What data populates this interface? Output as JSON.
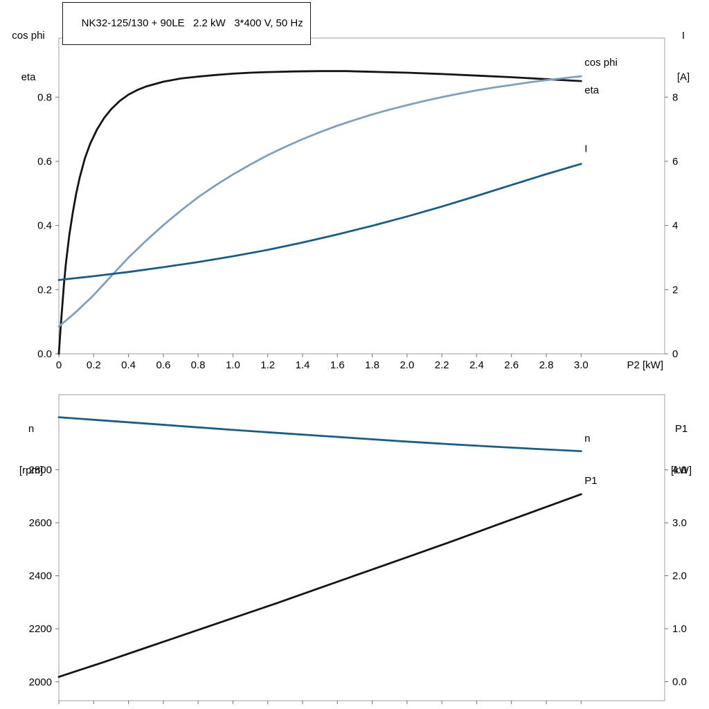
{
  "colors": {
    "black_curve": "#141414",
    "cos_phi_curve": "#7f9fbf",
    "blue_curve": "#1a5c84",
    "axis_box": "#9e9e9e",
    "tick": "#6e6e6e",
    "text": "#000000"
  },
  "chart_data": [
    {
      "type": "line",
      "title": "NK32-125/130 + 90LE   2.2 kW   3*400 V, 50 Hz",
      "grid": false,
      "x_axis": {
        "label": "P2 [kW]",
        "min": 0,
        "max": 3.48,
        "tick_values": [
          0,
          0.2,
          0.4,
          0.6,
          0.8,
          1.0,
          1.2,
          1.4,
          1.6,
          1.8,
          2.0,
          2.2,
          2.4,
          2.6,
          2.8,
          3.0
        ],
        "tick_labels": [
          "0",
          "0.2",
          "0.4",
          "0.6",
          "0.8",
          "1.0",
          "1.2",
          "1.4",
          "1.6",
          "1.8",
          "2.0",
          "2.2",
          "2.4",
          "2.6",
          "2.8",
          "3.0"
        ]
      },
      "y_left": {
        "title_lines": [
          "cos phi",
          "eta"
        ],
        "min": 0,
        "max": 0.984,
        "tick_values": [
          0,
          0.2,
          0.4,
          0.6,
          0.8
        ],
        "tick_labels": [
          "0.0",
          "0.2",
          "0.4",
          "0.6",
          "0.8"
        ]
      },
      "y_right": {
        "title_lines": [
          "I",
          "[A]"
        ],
        "min": 0,
        "max": 9.84,
        "tick_values": [
          0,
          2,
          4,
          6,
          8
        ],
        "tick_labels": [
          "0",
          "2",
          "4",
          "6",
          "8"
        ]
      },
      "series": [
        {
          "name": "eta",
          "label": "eta",
          "axis": "left",
          "color": "black_curve",
          "label_at": {
            "x": 3.02,
            "y": 0.822
          },
          "points": [
            [
              0,
              0
            ],
            [
              0.01,
              0.08
            ],
            [
              0.02,
              0.15
            ],
            [
              0.03,
              0.22
            ],
            [
              0.04,
              0.28
            ],
            [
              0.06,
              0.37
            ],
            [
              0.08,
              0.44
            ],
            [
              0.1,
              0.5
            ],
            [
              0.12,
              0.55
            ],
            [
              0.15,
              0.61
            ],
            [
              0.18,
              0.655
            ],
            [
              0.22,
              0.7
            ],
            [
              0.26,
              0.735
            ],
            [
              0.3,
              0.762
            ],
            [
              0.35,
              0.788
            ],
            [
              0.4,
              0.808
            ],
            [
              0.45,
              0.822
            ],
            [
              0.5,
              0.833
            ],
            [
              0.6,
              0.848
            ],
            [
              0.7,
              0.858
            ],
            [
              0.8,
              0.864
            ],
            [
              0.9,
              0.869
            ],
            [
              1.0,
              0.873
            ],
            [
              1.1,
              0.876
            ],
            [
              1.2,
              0.878
            ],
            [
              1.35,
              0.88
            ],
            [
              1.5,
              0.881
            ],
            [
              1.65,
              0.881
            ],
            [
              1.8,
              0.879
            ],
            [
              2.0,
              0.876
            ],
            [
              2.2,
              0.872
            ],
            [
              2.4,
              0.867
            ],
            [
              2.6,
              0.862
            ],
            [
              2.8,
              0.856
            ],
            [
              3.0,
              0.85
            ]
          ]
        },
        {
          "name": "cos-phi",
          "label": "cos phi",
          "axis": "left",
          "color": "cos_phi_curve",
          "label_at": {
            "x": 3.02,
            "y": 0.908
          },
          "points": [
            [
              0,
              0.085
            ],
            [
              0.1,
              0.131
            ],
            [
              0.2,
              0.183
            ],
            [
              0.3,
              0.242
            ],
            [
              0.4,
              0.3
            ],
            [
              0.5,
              0.352
            ],
            [
              0.6,
              0.401
            ],
            [
              0.7,
              0.446
            ],
            [
              0.8,
              0.488
            ],
            [
              0.9,
              0.525
            ],
            [
              1.0,
              0.559
            ],
            [
              1.1,
              0.59
            ],
            [
              1.2,
              0.619
            ],
            [
              1.3,
              0.645
            ],
            [
              1.4,
              0.669
            ],
            [
              1.5,
              0.691
            ],
            [
              1.6,
              0.711
            ],
            [
              1.7,
              0.729
            ],
            [
              1.8,
              0.746
            ],
            [
              1.9,
              0.761
            ],
            [
              2.0,
              0.775
            ],
            [
              2.1,
              0.788
            ],
            [
              2.2,
              0.8
            ],
            [
              2.3,
              0.811
            ],
            [
              2.4,
              0.821
            ],
            [
              2.5,
              0.83
            ],
            [
              2.6,
              0.838
            ],
            [
              2.7,
              0.846
            ],
            [
              2.8,
              0.853
            ],
            [
              2.9,
              0.859
            ],
            [
              3.0,
              0.865
            ]
          ]
        },
        {
          "name": "current",
          "label": "I",
          "axis": "right",
          "color": "blue_curve",
          "label_at": {
            "x": 3.02,
            "y": 6.4
          },
          "points": [
            [
              0,
              2.3
            ],
            [
              0.2,
              2.42
            ],
            [
              0.4,
              2.55
            ],
            [
              0.6,
              2.7
            ],
            [
              0.8,
              2.86
            ],
            [
              1.0,
              3.04
            ],
            [
              1.2,
              3.24
            ],
            [
              1.4,
              3.47
            ],
            [
              1.6,
              3.72
            ],
            [
              1.8,
              3.99
            ],
            [
              2.0,
              4.28
            ],
            [
              2.2,
              4.59
            ],
            [
              2.4,
              4.92
            ],
            [
              2.6,
              5.26
            ],
            [
              2.8,
              5.6
            ],
            [
              3.0,
              5.92
            ]
          ]
        }
      ]
    },
    {
      "type": "line",
      "title": "",
      "grid": false,
      "x_axis": {
        "label": "",
        "min": 0,
        "max": 3.48,
        "tick_values": [
          0,
          0.2,
          0.4,
          0.6,
          0.8,
          1.0,
          1.2,
          1.4,
          1.6,
          1.8,
          2.0,
          2.2,
          2.4,
          2.6,
          2.8,
          3.0
        ],
        "tick_labels": []
      },
      "y_left": {
        "title_lines": [
          "n",
          "[rpm]"
        ],
        "min": 1929,
        "max": 3083,
        "tick_values": [
          2000,
          2200,
          2400,
          2600,
          2800
        ],
        "tick_labels": [
          "2000",
          "2200",
          "2400",
          "2600",
          "2800"
        ]
      },
      "y_right": {
        "title_lines": [
          "P1",
          "[kW]"
        ],
        "min": -0.36,
        "max": 5.42,
        "tick_values": [
          0,
          1,
          2,
          3,
          4
        ],
        "tick_labels": [
          "0.0",
          "1.0",
          "2.0",
          "3.0",
          "4.0"
        ]
      },
      "series": [
        {
          "name": "speed",
          "label": "n",
          "axis": "left",
          "color": "blue_curve",
          "label_at": {
            "x": 3.02,
            "y": 2918
          },
          "points": [
            [
              0,
              2998
            ],
            [
              0.25,
              2986
            ],
            [
              0.5,
              2974
            ],
            [
              0.75,
              2962
            ],
            [
              1.0,
              2950
            ],
            [
              1.25,
              2939
            ],
            [
              1.5,
              2928
            ],
            [
              1.75,
              2917
            ],
            [
              2.0,
              2906
            ],
            [
              2.25,
              2896
            ],
            [
              2.5,
              2887
            ],
            [
              2.75,
              2878
            ],
            [
              3.0,
              2870
            ]
          ]
        },
        {
          "name": "p1",
          "label": "P1",
          "axis": "right",
          "color": "black_curve",
          "label_at": {
            "x": 3.02,
            "y": 3.8
          },
          "points": [
            [
              0,
              0.09
            ],
            [
              0.25,
              0.36
            ],
            [
              0.5,
              0.64
            ],
            [
              0.75,
              0.92
            ],
            [
              1.0,
              1.2
            ],
            [
              1.25,
              1.48
            ],
            [
              1.5,
              1.77
            ],
            [
              1.75,
              2.06
            ],
            [
              2.0,
              2.35
            ],
            [
              2.25,
              2.64
            ],
            [
              2.5,
              2.94
            ],
            [
              2.75,
              3.24
            ],
            [
              3.0,
              3.54
            ]
          ]
        }
      ]
    }
  ]
}
